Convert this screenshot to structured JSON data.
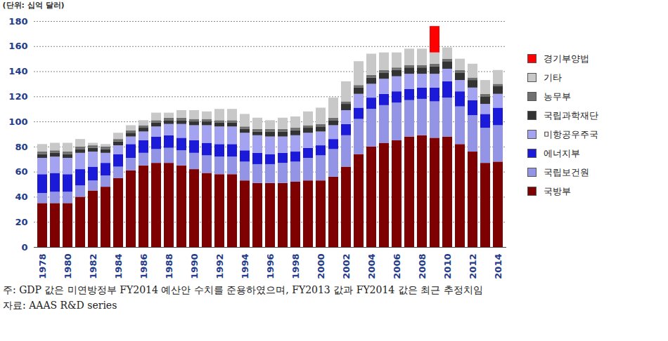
{
  "chart_data": {
    "type": "bar",
    "stacked": true,
    "ylabel": "(단위: 십억 달러)",
    "annotations": [
      "주: GDP 값은 미연방정부 FY2014 예산안 수치를 준용하였으며, FY2013 값과 FY2014 값은 최근 추정치임",
      "자료: AAAS R&D series"
    ],
    "categories": [
      "1978",
      null,
      "1980",
      null,
      "1982",
      null,
      "1984",
      null,
      "1986",
      null,
      "1988",
      null,
      "1990",
      null,
      "1992",
      null,
      "1994",
      null,
      "1996",
      null,
      "1998",
      null,
      "2000",
      null,
      "2002",
      null,
      "2004",
      null,
      "2006",
      null,
      "2008",
      null,
      "2010",
      null,
      "2012",
      null,
      "2014"
    ],
    "ylim": [
      0,
      180
    ],
    "yticks": [
      0,
      20,
      40,
      60,
      80,
      100,
      120,
      140,
      160,
      180
    ],
    "grid": true,
    "legend": "right",
    "series": [
      {
        "name": "국방부",
        "color": "#7f0000",
        "values": [
          35,
          35,
          35,
          40,
          45,
          48,
          55,
          61,
          65,
          67,
          67,
          65,
          62,
          59,
          58,
          58,
          53,
          51,
          51,
          51,
          52,
          53,
          53,
          56,
          64,
          74,
          80,
          83,
          85,
          88,
          89,
          87,
          88,
          82,
          76,
          67,
          68
        ]
      },
      {
        "name": "국립보건원",
        "color": "#9494e6",
        "values": [
          8,
          9,
          9,
          9,
          8,
          9,
          9,
          10,
          10,
          11,
          12,
          12,
          13,
          14,
          14,
          14,
          15,
          15,
          15,
          16,
          16,
          18,
          20,
          22,
          25,
          28,
          30,
          30,
          30,
          29,
          29,
          29,
          31,
          30,
          29,
          28,
          29
        ]
      },
      {
        "name": "에너지부",
        "color": "#1a1ad8",
        "values": [
          15,
          15,
          14,
          13,
          11,
          10,
          10,
          11,
          10,
          10,
          10,
          10,
          10,
          10,
          10,
          10,
          9,
          9,
          8,
          8,
          8,
          8,
          8,
          8,
          9,
          9,
          9,
          9,
          9,
          9,
          9,
          11,
          13,
          12,
          12,
          11,
          14
        ]
      },
      {
        "name": "미항공우주국",
        "color": "#a3a3f2",
        "values": [
          13,
          13,
          13,
          13,
          12,
          8,
          7,
          6,
          7,
          8,
          9,
          11,
          12,
          14,
          14,
          14,
          14,
          14,
          14,
          13,
          13,
          12,
          11,
          11,
          11,
          11,
          11,
          12,
          12,
          12,
          11,
          11,
          10,
          9,
          10,
          8,
          11
        ]
      },
      {
        "name": "국립과학재단",
        "color": "#333333",
        "values": [
          3,
          3,
          3,
          3,
          3,
          3,
          3,
          3,
          3,
          3,
          3,
          3,
          3,
          3,
          3,
          3,
          3,
          3,
          4,
          4,
          4,
          4,
          4,
          4,
          5,
          5,
          5,
          5,
          5,
          5,
          5,
          6,
          6,
          6,
          6,
          6,
          6
        ]
      },
      {
        "name": "농무부",
        "color": "#707070",
        "values": [
          2,
          2,
          2,
          2,
          2,
          2,
          2,
          2,
          2,
          2,
          2,
          2,
          2,
          2,
          2,
          2,
          2,
          2,
          2,
          2,
          2,
          2,
          2,
          2,
          2,
          2,
          2,
          2,
          2,
          2,
          2,
          2,
          2,
          2,
          2,
          2,
          2
        ]
      },
      {
        "name": "기타",
        "color": "#c8c8c8",
        "values": [
          6,
          6,
          7,
          6,
          2,
          2,
          5,
          4,
          4,
          6,
          4,
          6,
          7,
          6,
          9,
          9,
          10,
          9,
          7,
          9,
          9,
          11,
          13,
          16,
          16,
          19,
          17,
          14,
          12,
          13,
          13,
          9,
          9,
          9,
          11,
          11,
          11
        ]
      },
      {
        "name": "경기부양법",
        "color": "#ff0000",
        "values": [
          0,
          0,
          0,
          0,
          0,
          0,
          0,
          0,
          0,
          0,
          0,
          0,
          0,
          0,
          0,
          0,
          0,
          0,
          0,
          0,
          0,
          0,
          0,
          0,
          0,
          0,
          0,
          0,
          0,
          0,
          0,
          21,
          0,
          0,
          0,
          0,
          0
        ]
      }
    ]
  }
}
